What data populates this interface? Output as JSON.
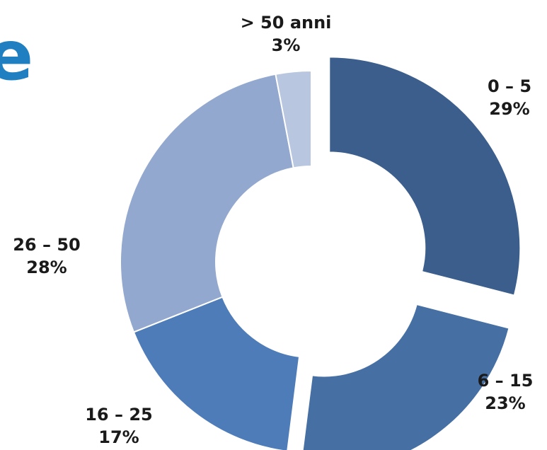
{
  "chart_data": {
    "type": "donut",
    "title": "",
    "series": [
      {
        "category": "0 – 5",
        "value": 29,
        "value_label": "29%",
        "color": "#3b5e8c",
        "exploded": true
      },
      {
        "category": "6 – 15",
        "value": 23,
        "value_label": "23%",
        "color": "#466fa4",
        "exploded": true
      },
      {
        "category": "16 – 25",
        "value": 17,
        "value_label": "17%",
        "color": "#4e7cb8",
        "exploded": false
      },
      {
        "category": "26 – 50",
        "value": 28,
        "value_label": "28%",
        "color": "#93a8cf",
        "exploded": false
      },
      {
        "category": "> 50 anni",
        "value": 3,
        "value_label": "3%",
        "color": "#b9c6df",
        "exploded": false
      }
    ],
    "legend": "none"
  },
  "edge_glyph": {
    "text": "e",
    "color": "#1f7fc0"
  }
}
